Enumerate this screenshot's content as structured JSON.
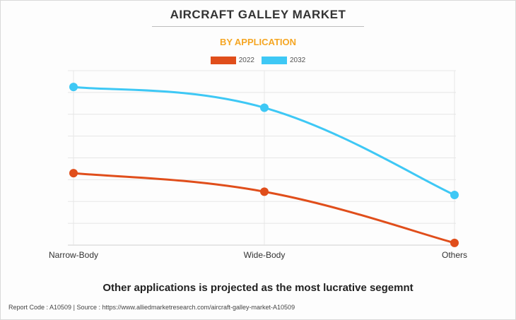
{
  "header": {
    "title": "AIRCRAFT GALLEY MARKET",
    "subtitle": "BY APPLICATION"
  },
  "chart_data": {
    "type": "line",
    "title": "AIRCRAFT GALLEY MARKET",
    "subtitle": "BY APPLICATION",
    "categories": [
      "Narrow-Body",
      "Wide-Body",
      "Others"
    ],
    "series": [
      {
        "name": "2022",
        "color": "#e04e1b",
        "values": [
          3.3,
          2.45,
          0.1
        ]
      },
      {
        "name": "2032",
        "color": "#3ec8f5",
        "values": [
          7.25,
          6.3,
          2.3
        ]
      }
    ],
    "ylim": [
      0,
      8
    ],
    "y_gridlines": 8,
    "grid": true,
    "legend_position": "top-center",
    "smooth": true
  },
  "caption": "Other applications is projected as the most lucrative segemnt",
  "footer": {
    "report_code": "Report Code : A10509",
    "separator": "|",
    "source": "Source : https://www.alliedmarketresearch.com/aircraft-galley-market-A10509"
  }
}
